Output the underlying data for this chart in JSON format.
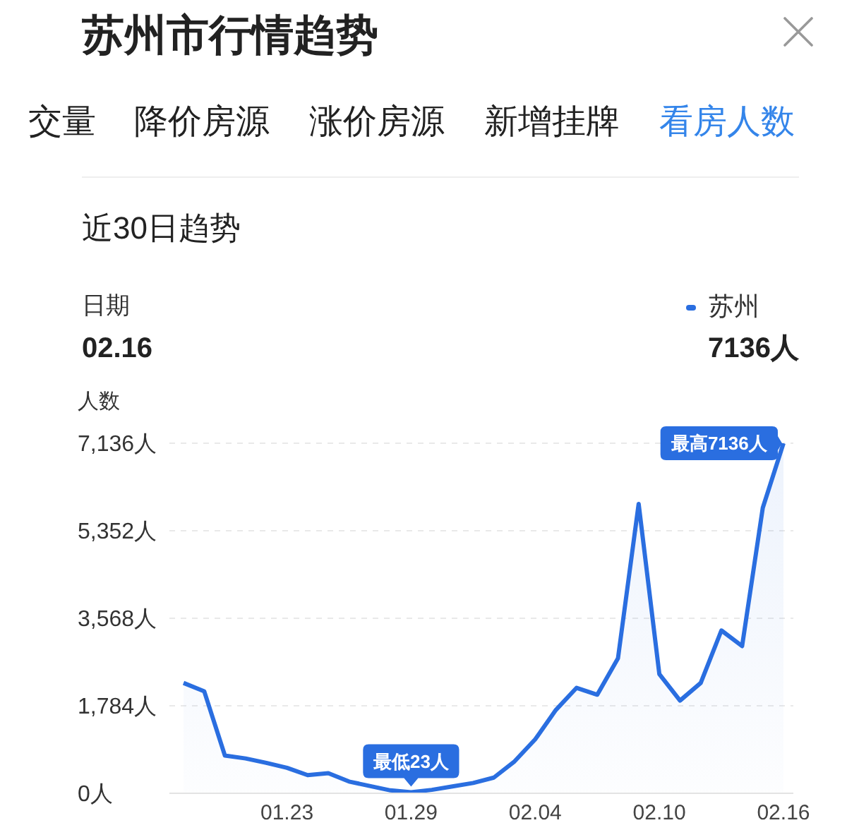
{
  "chart_data": {
    "type": "area",
    "title": "苏州市行情趋势",
    "subtitle": "近30日趋势",
    "ylabel": "人数",
    "categories": [
      null,
      null,
      null,
      null,
      null,
      "01.23",
      null,
      null,
      null,
      null,
      null,
      "01.29",
      null,
      null,
      null,
      null,
      null,
      "02.04",
      null,
      null,
      null,
      null,
      null,
      "02.10",
      null,
      null,
      null,
      null,
      null,
      "02.16"
    ],
    "series": [
      {
        "name": "苏州",
        "color": "#2a6ee0",
        "values": [
          2250,
          2080,
          770,
          710,
          620,
          520,
          370,
          410,
          240,
          150,
          60,
          23,
          70,
          140,
          210,
          320,
          650,
          1100,
          1700,
          2150,
          2010,
          2750,
          5900,
          2430,
          1890,
          2250,
          3320,
          3000,
          5820,
          7136
        ]
      }
    ],
    "ylim": [
      0,
      7136
    ],
    "yticks": [
      {
        "value": 0,
        "label": "0人"
      },
      {
        "value": 1784,
        "label": "1,784人"
      },
      {
        "value": 3568,
        "label": "3,568人"
      },
      {
        "value": 5352,
        "label": "5,352人"
      },
      {
        "value": 7136,
        "label": "7,136人"
      }
    ],
    "grid": "y",
    "legend": "top right",
    "annotations": [
      "交量",
      "降价房源",
      "涨价房源",
      "新增挂牌",
      "看房人数",
      "日期",
      "02.16",
      "7136人",
      {
        "text": "最高7136人",
        "x": "02.16",
        "y": 7136
      },
      {
        "text": "最低23人",
        "x": "01.29",
        "y": 23
      }
    ]
  }
}
